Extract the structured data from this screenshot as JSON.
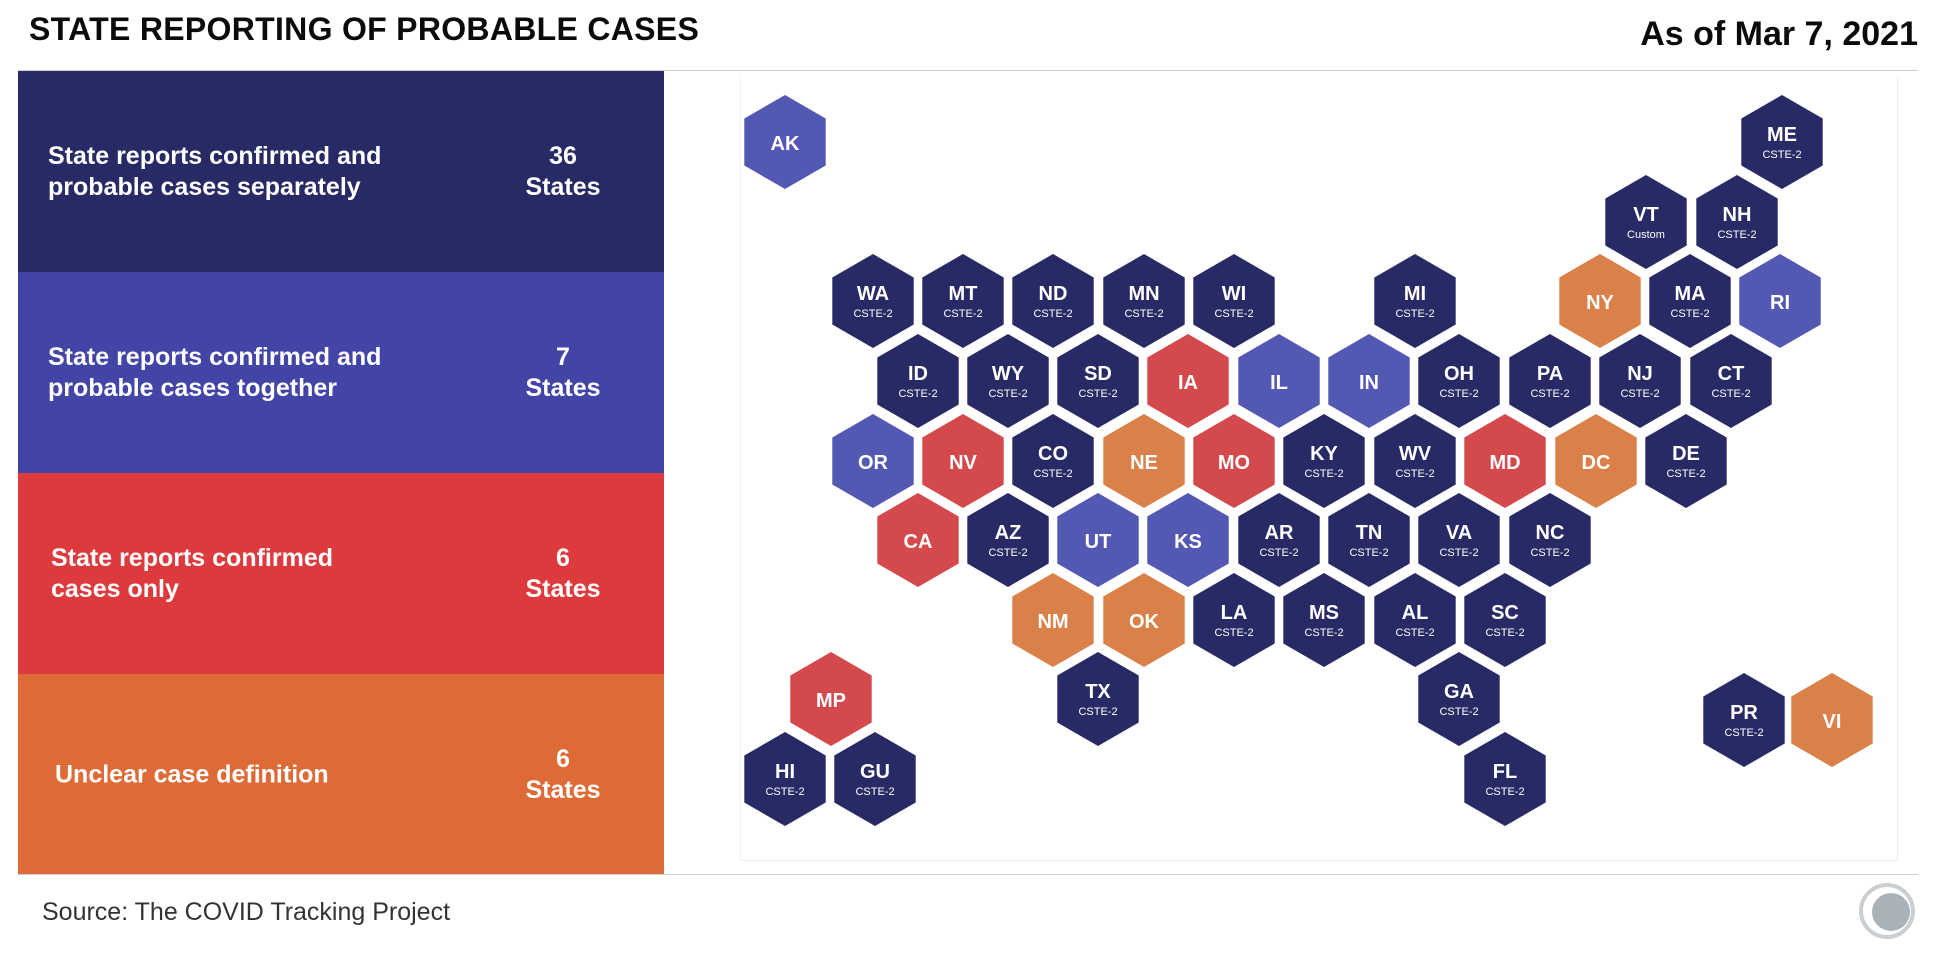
{
  "header": {
    "title": "STATE REPORTING OF PROBABLE CASES",
    "date": "As of Mar 7, 2021"
  },
  "legend": [
    {
      "line1": "State reports confirmed and",
      "line2": "probable cases separately",
      "count": "36",
      "unit": "States",
      "color": "#272a64"
    },
    {
      "line1": "State reports confirmed and",
      "line2": "probable cases together",
      "count": "7",
      "unit": "States",
      "color": "#4245a6"
    },
    {
      "line1": "State reports confirmed",
      "line2": "cases only",
      "count": "6",
      "unit": "States",
      "color": "#dd3a3e"
    },
    {
      "line1": "",
      "line2": "Unclear case definition",
      "count": "6",
      "unit": "States",
      "color": "#de6b37"
    }
  ],
  "category_colors": {
    "separately": "#272a64",
    "together": "#5358b3",
    "confirmed_only": "#d4494c",
    "unclear": "#d98148"
  },
  "states": [
    {
      "abbr": "AK",
      "cat": "together",
      "sub": ""
    },
    {
      "abbr": "ME",
      "cat": "separately",
      "sub": "CSTE-2"
    },
    {
      "abbr": "VT",
      "cat": "separately",
      "sub": "Custom"
    },
    {
      "abbr": "NH",
      "cat": "separately",
      "sub": "CSTE-2"
    },
    {
      "abbr": "WA",
      "cat": "separately",
      "sub": "CSTE-2"
    },
    {
      "abbr": "MT",
      "cat": "separately",
      "sub": "CSTE-2"
    },
    {
      "abbr": "ND",
      "cat": "separately",
      "sub": "CSTE-2"
    },
    {
      "abbr": "MN",
      "cat": "separately",
      "sub": "CSTE-2"
    },
    {
      "abbr": "WI",
      "cat": "separately",
      "sub": "CSTE-2"
    },
    {
      "abbr": "MI",
      "cat": "separately",
      "sub": "CSTE-2"
    },
    {
      "abbr": "NY",
      "cat": "unclear",
      "sub": ""
    },
    {
      "abbr": "MA",
      "cat": "separately",
      "sub": "CSTE-2"
    },
    {
      "abbr": "RI",
      "cat": "together",
      "sub": ""
    },
    {
      "abbr": "ID",
      "cat": "separately",
      "sub": "CSTE-2"
    },
    {
      "abbr": "WY",
      "cat": "separately",
      "sub": "CSTE-2"
    },
    {
      "abbr": "SD",
      "cat": "separately",
      "sub": "CSTE-2"
    },
    {
      "abbr": "IA",
      "cat": "confirmed_only",
      "sub": ""
    },
    {
      "abbr": "IL",
      "cat": "together",
      "sub": ""
    },
    {
      "abbr": "IN",
      "cat": "together",
      "sub": ""
    },
    {
      "abbr": "OH",
      "cat": "separately",
      "sub": "CSTE-2"
    },
    {
      "abbr": "PA",
      "cat": "separately",
      "sub": "CSTE-2"
    },
    {
      "abbr": "NJ",
      "cat": "separately",
      "sub": "CSTE-2"
    },
    {
      "abbr": "CT",
      "cat": "separately",
      "sub": "CSTE-2"
    },
    {
      "abbr": "OR",
      "cat": "together",
      "sub": ""
    },
    {
      "abbr": "NV",
      "cat": "confirmed_only",
      "sub": ""
    },
    {
      "abbr": "CO",
      "cat": "separately",
      "sub": "CSTE-2"
    },
    {
      "abbr": "NE",
      "cat": "unclear",
      "sub": ""
    },
    {
      "abbr": "MO",
      "cat": "confirmed_only",
      "sub": ""
    },
    {
      "abbr": "KY",
      "cat": "separately",
      "sub": "CSTE-2"
    },
    {
      "abbr": "WV",
      "cat": "separately",
      "sub": "CSTE-2"
    },
    {
      "abbr": "MD",
      "cat": "confirmed_only",
      "sub": ""
    },
    {
      "abbr": "DC",
      "cat": "unclear",
      "sub": ""
    },
    {
      "abbr": "DE",
      "cat": "separately",
      "sub": "CSTE-2"
    },
    {
      "abbr": "CA",
      "cat": "confirmed_only",
      "sub": ""
    },
    {
      "abbr": "AZ",
      "cat": "separately",
      "sub": "CSTE-2"
    },
    {
      "abbr": "UT",
      "cat": "together",
      "sub": ""
    },
    {
      "abbr": "KS",
      "cat": "together",
      "sub": ""
    },
    {
      "abbr": "AR",
      "cat": "separately",
      "sub": "CSTE-2"
    },
    {
      "abbr": "TN",
      "cat": "separately",
      "sub": "CSTE-2"
    },
    {
      "abbr": "VA",
      "cat": "separately",
      "sub": "CSTE-2"
    },
    {
      "abbr": "NC",
      "cat": "separately",
      "sub": "CSTE-2"
    },
    {
      "abbr": "NM",
      "cat": "unclear",
      "sub": ""
    },
    {
      "abbr": "OK",
      "cat": "unclear",
      "sub": ""
    },
    {
      "abbr": "LA",
      "cat": "separately",
      "sub": "CSTE-2"
    },
    {
      "abbr": "MS",
      "cat": "separately",
      "sub": "CSTE-2"
    },
    {
      "abbr": "AL",
      "cat": "separately",
      "sub": "CSTE-2"
    },
    {
      "abbr": "SC",
      "cat": "separately",
      "sub": "CSTE-2"
    },
    {
      "abbr": "MP",
      "cat": "confirmed_only",
      "sub": ""
    },
    {
      "abbr": "TX",
      "cat": "separately",
      "sub": "CSTE-2"
    },
    {
      "abbr": "GA",
      "cat": "separately",
      "sub": "CSTE-2"
    },
    {
      "abbr": "PR",
      "cat": "separately",
      "sub": "CSTE-2"
    },
    {
      "abbr": "VI",
      "cat": "unclear",
      "sub": ""
    },
    {
      "abbr": "HI",
      "cat": "separately",
      "sub": "CSTE-2"
    },
    {
      "abbr": "GU",
      "cat": "separately",
      "sub": "CSTE-2"
    },
    {
      "abbr": "FL",
      "cat": "separately",
      "sub": "CSTE-2"
    }
  ],
  "footer": {
    "source": "Source: The COVID Tracking Project",
    "logo_icon": "covid-tracking-project-logo-icon"
  }
}
